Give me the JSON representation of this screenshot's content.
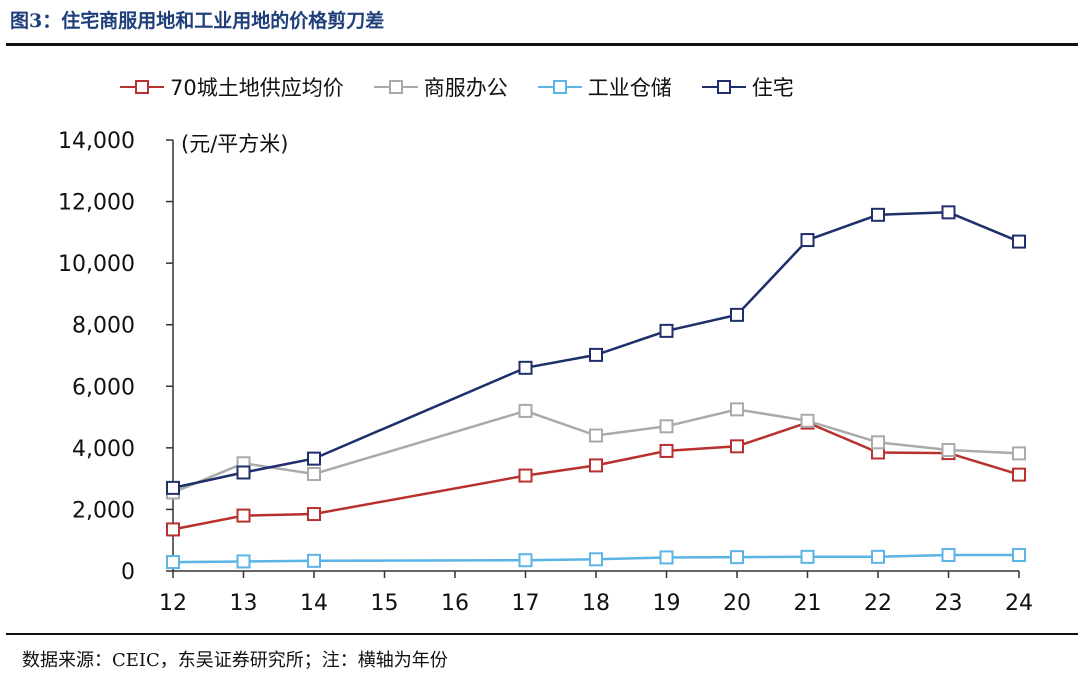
{
  "figure": {
    "title": "图3：住宅商服用地和工业用地的价格剪刀差",
    "source": "数据来源：CEIC，东吴证券研究所；注：横轴为年份",
    "unit": "(元/平方米)"
  },
  "chart_data": {
    "type": "line",
    "title": "",
    "xlabel": "",
    "ylabel": "(元/平方米)",
    "x": [
      "12",
      "13",
      "14",
      "15",
      "16",
      "17",
      "18",
      "19",
      "20",
      "21",
      "22",
      "23",
      "24"
    ],
    "ylim": [
      0,
      14000
    ],
    "yticks": [
      "0",
      "2,000",
      "4,000",
      "6,000",
      "8,000",
      "10,000",
      "12,000",
      "14,000"
    ],
    "grid": false,
    "legend": "top",
    "series": [
      {
        "name": "70城土地供应均价",
        "color": "#b8312f",
        "values": [
          1350,
          1800,
          1850,
          null,
          null,
          3100,
          3430,
          3900,
          4050,
          4820,
          3850,
          3830,
          3130
        ]
      },
      {
        "name": "商服办公",
        "color": "#aaaaaa",
        "values": [
          2550,
          3500,
          3150,
          null,
          null,
          5200,
          4400,
          4700,
          5250,
          4880,
          4180,
          3930,
          3820
        ]
      },
      {
        "name": "工业仓储",
        "color": "#5ab4e5",
        "values": [
          290,
          310,
          330,
          null,
          null,
          350,
          380,
          440,
          450,
          460,
          460,
          520,
          520
        ]
      },
      {
        "name": "住宅",
        "color": "#1f2f6b",
        "values": [
          2700,
          3200,
          3650,
          null,
          null,
          6600,
          7020,
          7800,
          8320,
          10750,
          11570,
          11650,
          10700
        ]
      }
    ]
  }
}
